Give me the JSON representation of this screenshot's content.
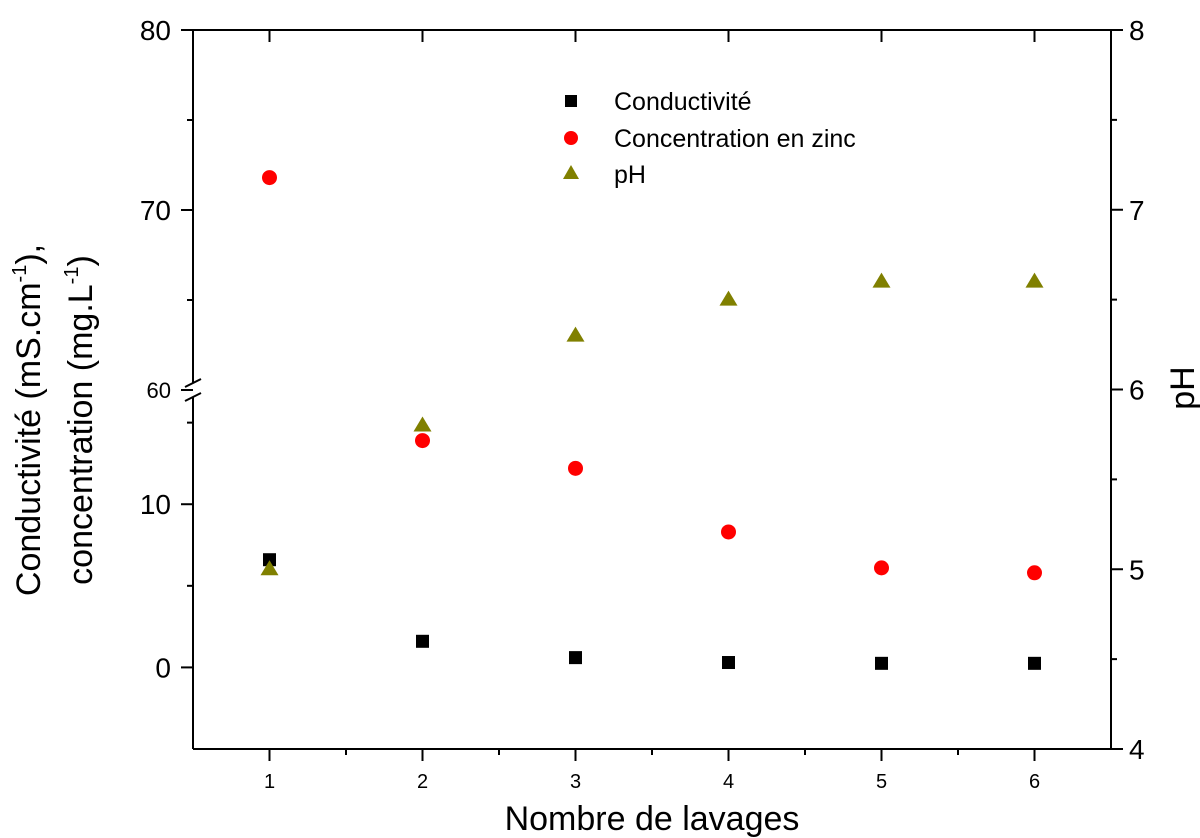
{
  "chart_data": {
    "type": "scatter",
    "xlabel": "Nombre de lavages",
    "ylabel_left_line1": "Conductivité (mS.cm",
    "ylabel_left_line1_sup": "-1",
    "ylabel_left_line1_end": "),",
    "ylabel_left_line2": "concentration (mg.L",
    "ylabel_left_line2_sup": "-1",
    "ylabel_left_line2_end": ")",
    "ylabel_right": "pH",
    "x_range": [
      0.5,
      6.5
    ],
    "x_ticks": [
      "1",
      "2",
      "3",
      "4",
      "5",
      "6"
    ],
    "y_left_lower_range": [
      -5,
      17
    ],
    "y_left_lower_ticks": [
      "0",
      "10"
    ],
    "y_left_upper_range": [
      60,
      80
    ],
    "y_left_upper_ticks": [
      "60",
      "70",
      "80"
    ],
    "y_right_range": [
      4,
      8
    ],
    "y_right_ticks": [
      "4",
      "5",
      "6",
      "7",
      "8"
    ],
    "axis_break": "between 17 and 60 on left axis",
    "legend_position": "top-center",
    "grid": false,
    "series": [
      {
        "name": "Conductivité",
        "axis": "left",
        "marker": "square",
        "color": "#000000",
        "x": [
          1,
          2,
          3,
          4,
          5,
          6
        ],
        "y": [
          6.6,
          1.6,
          0.6,
          0.3,
          0.25,
          0.25
        ]
      },
      {
        "name": "Concentration en zinc",
        "axis": "left",
        "marker": "circle",
        "color": "#ff0000",
        "x": [
          1,
          2,
          3,
          4,
          5,
          6
        ],
        "y": [
          71.8,
          13.9,
          12.2,
          8.3,
          6.1,
          5.8
        ]
      },
      {
        "name": "pH",
        "axis": "right",
        "marker": "triangle",
        "color": "#808000",
        "x": [
          1,
          2,
          3,
          4,
          5,
          6
        ],
        "y": [
          5.0,
          5.8,
          6.3,
          6.5,
          6.6,
          6.6
        ]
      }
    ]
  }
}
